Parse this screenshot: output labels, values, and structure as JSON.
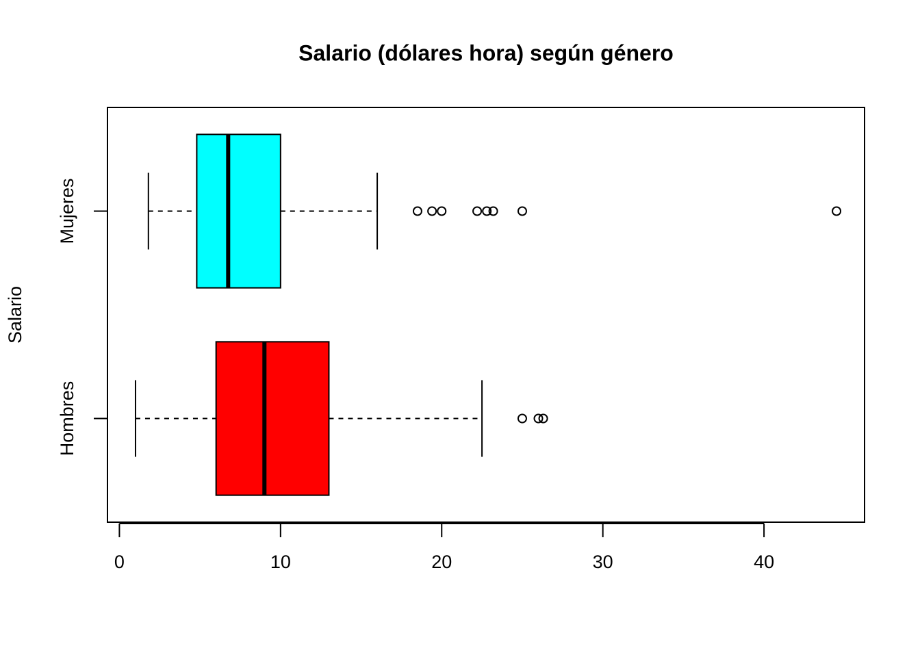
{
  "chart_data": {
    "type": "boxplot",
    "title": "Salario (dólares hora) según género",
    "y_label": "Salario",
    "categories": [
      "Hombres",
      "Mujeres"
    ],
    "boxes": [
      {
        "color": "#ff0000",
        "whislo": 1.0,
        "q1": 6.0,
        "med": 9.0,
        "q3": 13.0,
        "whishi": 22.5,
        "outliers": [
          25,
          26,
          26.3
        ]
      },
      {
        "color": "#00ffff",
        "whislo": 1.8,
        "q1": 4.8,
        "med": 6.75,
        "q3": 10.0,
        "whishi": 16.0,
        "outliers": [
          18.5,
          19.4,
          20.0,
          22.2,
          22.8,
          23.2,
          25,
          44.5
        ]
      }
    ],
    "xlim": [
      -0.74,
      46.24
    ],
    "xticks": [
      0,
      10,
      20,
      30,
      40
    ]
  }
}
